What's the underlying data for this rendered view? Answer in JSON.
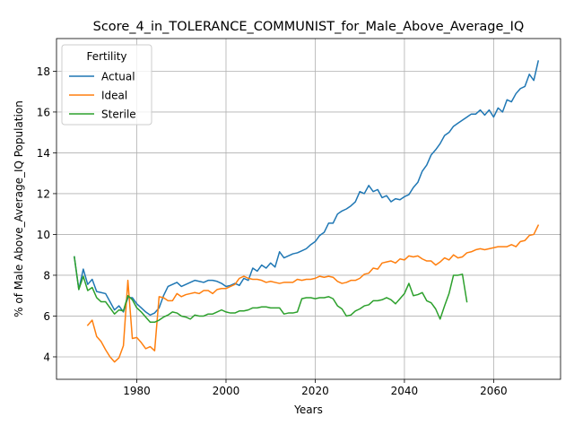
{
  "chart_data": {
    "type": "line",
    "title": "Score_4_in_TOLERANCE_COMMUNIST_for_Male_Above_Average_IQ",
    "xlabel": "Years",
    "ylabel": "% of Male Above_Average_IQ Population",
    "xlim": [
      1962,
      2075
    ],
    "ylim": [
      2.9,
      19.6
    ],
    "xticks": [
      1980,
      2000,
      2020,
      2040,
      2060
    ],
    "yticks": [
      4,
      6,
      8,
      10,
      12,
      14,
      16,
      18
    ],
    "grid": true,
    "legend": {
      "title": "Fertility",
      "position": "top-left"
    },
    "series": [
      {
        "name": "Actual",
        "color": "#1f77b4",
        "points": [
          [
            1966,
            8.9
          ],
          [
            1967,
            7.3
          ],
          [
            1968,
            8.3
          ],
          [
            1969,
            7.55
          ],
          [
            1970,
            7.8
          ],
          [
            1971,
            7.2
          ],
          [
            1972,
            7.15
          ],
          [
            1973,
            7.1
          ],
          [
            1974,
            6.7
          ],
          [
            1975,
            6.3
          ],
          [
            1976,
            6.5
          ],
          [
            1977,
            6.2
          ],
          [
            1978,
            6.9
          ],
          [
            1979,
            6.9
          ],
          [
            1980,
            6.6
          ],
          [
            1981,
            6.4
          ],
          [
            1982,
            6.2
          ],
          [
            1983,
            6.05
          ],
          [
            1984,
            6.15
          ],
          [
            1985,
            6.4
          ],
          [
            1986,
            7.0
          ],
          [
            1987,
            7.45
          ],
          [
            1988,
            7.55
          ],
          [
            1989,
            7.65
          ],
          [
            1990,
            7.45
          ],
          [
            1991,
            7.55
          ],
          [
            1992,
            7.65
          ],
          [
            1993,
            7.75
          ],
          [
            1994,
            7.7
          ],
          [
            1995,
            7.65
          ],
          [
            1996,
            7.75
          ],
          [
            1997,
            7.75
          ],
          [
            1998,
            7.7
          ],
          [
            1999,
            7.6
          ],
          [
            2000,
            7.45
          ],
          [
            2001,
            7.5
          ],
          [
            2002,
            7.6
          ],
          [
            2003,
            7.5
          ],
          [
            2004,
            7.85
          ],
          [
            2005,
            7.75
          ],
          [
            2006,
            8.35
          ],
          [
            2007,
            8.2
          ],
          [
            2008,
            8.5
          ],
          [
            2009,
            8.35
          ],
          [
            2010,
            8.6
          ],
          [
            2011,
            8.4
          ],
          [
            2012,
            9.15
          ],
          [
            2013,
            8.85
          ],
          [
            2014,
            8.95
          ],
          [
            2015,
            9.05
          ],
          [
            2016,
            9.1
          ],
          [
            2017,
            9.2
          ],
          [
            2018,
            9.3
          ],
          [
            2019,
            9.5
          ],
          [
            2020,
            9.65
          ],
          [
            2021,
            9.95
          ],
          [
            2022,
            10.1
          ],
          [
            2023,
            10.55
          ],
          [
            2024,
            10.55
          ],
          [
            2025,
            11.0
          ],
          [
            2026,
            11.15
          ],
          [
            2027,
            11.25
          ],
          [
            2028,
            11.4
          ],
          [
            2029,
            11.6
          ],
          [
            2030,
            12.1
          ],
          [
            2031,
            12.0
          ],
          [
            2032,
            12.4
          ],
          [
            2033,
            12.1
          ],
          [
            2034,
            12.2
          ],
          [
            2035,
            11.8
          ],
          [
            2036,
            11.9
          ],
          [
            2037,
            11.6
          ],
          [
            2038,
            11.75
          ],
          [
            2039,
            11.7
          ],
          [
            2040,
            11.85
          ],
          [
            2041,
            11.95
          ],
          [
            2042,
            12.3
          ],
          [
            2043,
            12.55
          ],
          [
            2044,
            13.1
          ],
          [
            2045,
            13.4
          ],
          [
            2046,
            13.9
          ],
          [
            2047,
            14.15
          ],
          [
            2048,
            14.45
          ],
          [
            2049,
            14.85
          ],
          [
            2050,
            15.0
          ],
          [
            2051,
            15.3
          ],
          [
            2052,
            15.45
          ],
          [
            2053,
            15.6
          ],
          [
            2054,
            15.75
          ],
          [
            2055,
            15.9
          ],
          [
            2056,
            15.9
          ],
          [
            2057,
            16.1
          ],
          [
            2058,
            15.85
          ],
          [
            2059,
            16.1
          ],
          [
            2060,
            15.75
          ],
          [
            2061,
            16.2
          ],
          [
            2062,
            16.0
          ],
          [
            2063,
            16.6
          ],
          [
            2064,
            16.5
          ],
          [
            2065,
            16.9
          ],
          [
            2066,
            17.15
          ],
          [
            2067,
            17.25
          ],
          [
            2068,
            17.85
          ],
          [
            2069,
            17.55
          ],
          [
            2070,
            18.5
          ]
        ]
      },
      {
        "name": "Ideal",
        "color": "#ff7f0e",
        "points": [
          [
            1969,
            5.55
          ],
          [
            1970,
            5.8
          ],
          [
            1971,
            5.0
          ],
          [
            1972,
            4.75
          ],
          [
            1973,
            4.35
          ],
          [
            1974,
            4.0
          ],
          [
            1975,
            3.75
          ],
          [
            1976,
            3.95
          ],
          [
            1977,
            4.55
          ],
          [
            1978,
            7.75
          ],
          [
            1979,
            4.9
          ],
          [
            1980,
            4.95
          ],
          [
            1981,
            4.7
          ],
          [
            1982,
            4.4
          ],
          [
            1983,
            4.5
          ],
          [
            1984,
            4.3
          ],
          [
            1985,
            6.95
          ],
          [
            1986,
            6.9
          ],
          [
            1987,
            6.75
          ],
          [
            1988,
            6.75
          ],
          [
            1989,
            7.1
          ],
          [
            1990,
            6.95
          ],
          [
            1991,
            7.05
          ],
          [
            1992,
            7.1
          ],
          [
            1993,
            7.15
          ],
          [
            1994,
            7.1
          ],
          [
            1995,
            7.25
          ],
          [
            1996,
            7.25
          ],
          [
            1997,
            7.1
          ],
          [
            1998,
            7.3
          ],
          [
            1999,
            7.35
          ],
          [
            2000,
            7.35
          ],
          [
            2001,
            7.45
          ],
          [
            2002,
            7.55
          ],
          [
            2003,
            7.85
          ],
          [
            2004,
            7.95
          ],
          [
            2005,
            7.85
          ],
          [
            2006,
            7.8
          ],
          [
            2007,
            7.8
          ],
          [
            2008,
            7.75
          ],
          [
            2009,
            7.65
          ],
          [
            2010,
            7.7
          ],
          [
            2011,
            7.65
          ],
          [
            2012,
            7.6
          ],
          [
            2013,
            7.65
          ],
          [
            2014,
            7.65
          ],
          [
            2015,
            7.65
          ],
          [
            2016,
            7.8
          ],
          [
            2017,
            7.75
          ],
          [
            2018,
            7.8
          ],
          [
            2019,
            7.8
          ],
          [
            2020,
            7.85
          ],
          [
            2021,
            7.95
          ],
          [
            2022,
            7.9
          ],
          [
            2023,
            7.95
          ],
          [
            2024,
            7.9
          ],
          [
            2025,
            7.7
          ],
          [
            2026,
            7.6
          ],
          [
            2027,
            7.65
          ],
          [
            2028,
            7.75
          ],
          [
            2029,
            7.75
          ],
          [
            2030,
            7.85
          ],
          [
            2031,
            8.05
          ],
          [
            2032,
            8.1
          ],
          [
            2033,
            8.35
          ],
          [
            2034,
            8.3
          ],
          [
            2035,
            8.6
          ],
          [
            2036,
            8.65
          ],
          [
            2037,
            8.7
          ],
          [
            2038,
            8.6
          ],
          [
            2039,
            8.8
          ],
          [
            2040,
            8.75
          ],
          [
            2041,
            8.95
          ],
          [
            2042,
            8.9
          ],
          [
            2043,
            8.95
          ],
          [
            2044,
            8.8
          ],
          [
            2045,
            8.7
          ],
          [
            2046,
            8.7
          ],
          [
            2047,
            8.5
          ],
          [
            2048,
            8.65
          ],
          [
            2049,
            8.85
          ],
          [
            2050,
            8.75
          ],
          [
            2051,
            9.0
          ],
          [
            2052,
            8.85
          ],
          [
            2053,
            8.9
          ],
          [
            2054,
            9.1
          ],
          [
            2055,
            9.15
          ],
          [
            2056,
            9.25
          ],
          [
            2057,
            9.3
          ],
          [
            2058,
            9.25
          ],
          [
            2059,
            9.3
          ],
          [
            2060,
            9.35
          ],
          [
            2061,
            9.4
          ],
          [
            2062,
            9.4
          ],
          [
            2063,
            9.4
          ],
          [
            2064,
            9.5
          ],
          [
            2065,
            9.4
          ],
          [
            2066,
            9.65
          ],
          [
            2067,
            9.7
          ],
          [
            2068,
            9.95
          ],
          [
            2069,
            10.0
          ],
          [
            2070,
            10.45
          ]
        ]
      },
      {
        "name": "Sterile",
        "color": "#2ca02c",
        "points": [
          [
            1966,
            8.9
          ],
          [
            1967,
            7.3
          ],
          [
            1968,
            7.95
          ],
          [
            1969,
            7.25
          ],
          [
            1970,
            7.4
          ],
          [
            1971,
            6.9
          ],
          [
            1972,
            6.7
          ],
          [
            1973,
            6.7
          ],
          [
            1974,
            6.4
          ],
          [
            1975,
            6.1
          ],
          [
            1976,
            6.3
          ],
          [
            1977,
            6.25
          ],
          [
            1978,
            7.0
          ],
          [
            1979,
            6.8
          ],
          [
            1980,
            6.4
          ],
          [
            1981,
            6.2
          ],
          [
            1982,
            5.95
          ],
          [
            1983,
            5.7
          ],
          [
            1984,
            5.7
          ],
          [
            1985,
            5.8
          ],
          [
            1986,
            5.95
          ],
          [
            1987,
            6.05
          ],
          [
            1988,
            6.2
          ],
          [
            1989,
            6.15
          ],
          [
            1990,
            6.0
          ],
          [
            1991,
            5.95
          ],
          [
            1992,
            5.85
          ],
          [
            1993,
            6.05
          ],
          [
            1994,
            6.0
          ],
          [
            1995,
            6.0
          ],
          [
            1996,
            6.1
          ],
          [
            1997,
            6.1
          ],
          [
            1998,
            6.2
          ],
          [
            1999,
            6.3
          ],
          [
            2000,
            6.2
          ],
          [
            2001,
            6.15
          ],
          [
            2002,
            6.15
          ],
          [
            2003,
            6.25
          ],
          [
            2004,
            6.25
          ],
          [
            2005,
            6.3
          ],
          [
            2006,
            6.4
          ],
          [
            2007,
            6.4
          ],
          [
            2008,
            6.45
          ],
          [
            2009,
            6.45
          ],
          [
            2010,
            6.4
          ],
          [
            2011,
            6.4
          ],
          [
            2012,
            6.4
          ],
          [
            2013,
            6.1
          ],
          [
            2014,
            6.15
          ],
          [
            2015,
            6.15
          ],
          [
            2016,
            6.2
          ],
          [
            2017,
            6.85
          ],
          [
            2018,
            6.9
          ],
          [
            2019,
            6.9
          ],
          [
            2020,
            6.85
          ],
          [
            2021,
            6.9
          ],
          [
            2022,
            6.9
          ],
          [
            2023,
            6.95
          ],
          [
            2024,
            6.85
          ],
          [
            2025,
            6.5
          ],
          [
            2026,
            6.35
          ],
          [
            2027,
            6.0
          ],
          [
            2028,
            6.05
          ],
          [
            2029,
            6.25
          ],
          [
            2030,
            6.35
          ],
          [
            2031,
            6.5
          ],
          [
            2032,
            6.55
          ],
          [
            2033,
            6.75
          ],
          [
            2034,
            6.75
          ],
          [
            2035,
            6.8
          ],
          [
            2036,
            6.9
          ],
          [
            2037,
            6.8
          ],
          [
            2038,
            6.6
          ],
          [
            2039,
            6.85
          ],
          [
            2040,
            7.1
          ],
          [
            2041,
            7.6
          ],
          [
            2042,
            7.0
          ],
          [
            2043,
            7.05
          ],
          [
            2044,
            7.15
          ],
          [
            2045,
            6.75
          ],
          [
            2046,
            6.65
          ],
          [
            2047,
            6.35
          ],
          [
            2048,
            5.85
          ],
          [
            2049,
            6.5
          ],
          [
            2050,
            7.1
          ],
          [
            2051,
            8.0
          ],
          [
            2052,
            8.0
          ],
          [
            2053,
            8.05
          ],
          [
            2054,
            6.7
          ]
        ]
      }
    ]
  }
}
